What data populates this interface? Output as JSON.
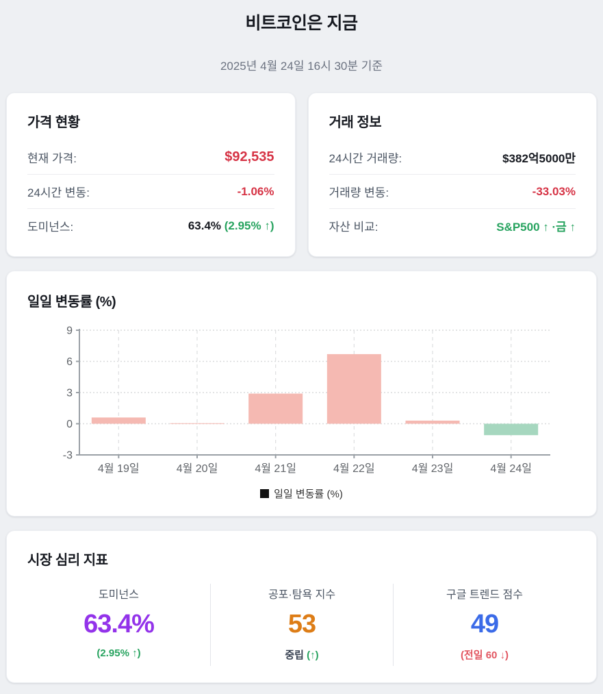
{
  "header": {
    "title": "비트코인은 지금",
    "timestamp": "2025년 4월 24일 16시 30분 기준"
  },
  "price_card": {
    "title": "가격 현황",
    "rows": [
      {
        "label": "현재 가격:",
        "value": "$92,535"
      },
      {
        "label": "24시간 변동:",
        "value": "-1.06%"
      },
      {
        "label": "도미넌스:",
        "value": "63.4%",
        "extra": "(2.95% ↑)"
      }
    ]
  },
  "trade_card": {
    "title": "거래 정보",
    "rows": [
      {
        "label": "24시간 거래량:",
        "value": "$382억5000만"
      },
      {
        "label": "거래량 변동:",
        "value": "-33.03%"
      },
      {
        "label": "자산 비교:",
        "value": "S&P500 ↑ ·금 ↑"
      }
    ]
  },
  "chart_card": {
    "title": "일일 변동률 (%)"
  },
  "chart_data": {
    "type": "bar",
    "title": "일일 변동률 (%)",
    "categories": [
      "4월 19일",
      "4월 20일",
      "4월 21일",
      "4월 22일",
      "4월 23일",
      "4월 24일"
    ],
    "values": [
      0.6,
      0.05,
      2.9,
      6.7,
      0.3,
      -1.1
    ],
    "ylim": [
      -3,
      9
    ],
    "yticks": [
      9,
      6,
      3,
      0,
      -3
    ],
    "grid": "dashed horizontal and vertical",
    "legend": "일일 변동률 (%)",
    "legend_position": "bottom-center",
    "xlabel": "",
    "ylabel": ""
  },
  "sentiment_card": {
    "title": "시장 심리 지표",
    "metrics": [
      {
        "label": "도미넌스",
        "value": "63.4%",
        "sub": "(2.95% ↑)"
      },
      {
        "label": "공포·탐욕 지수",
        "value": "53",
        "sub_main": "중립",
        "sub_extra": "(↑)"
      },
      {
        "label": "구글 트렌드 점수",
        "value": "49",
        "sub": "(전일 60 ↓)"
      }
    ]
  },
  "colors": {
    "negative_red": "#d63345",
    "positive_green": "#27a35f",
    "dark_text": "#15181f",
    "purple_value": "#9333ea",
    "orange_value": "#dd7d17",
    "blue_value": "#3b6be8",
    "red_sub": "#e25560",
    "bar_positive": "#f5b9b2",
    "bar_negative": "#a6d7bf"
  }
}
